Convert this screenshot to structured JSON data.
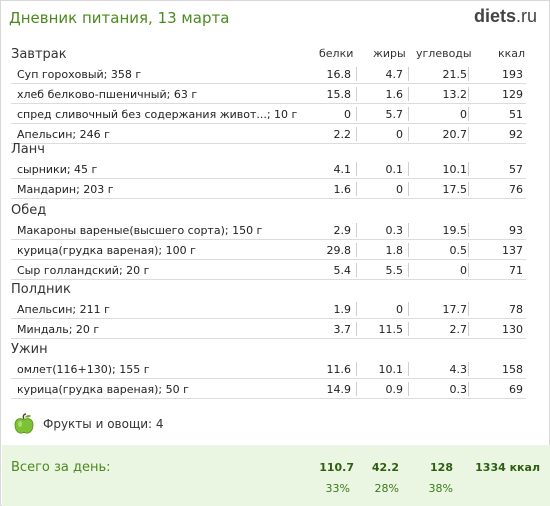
{
  "header": {
    "title": "Дневник питания, 13 марта",
    "logo_part1": "diets",
    "logo_part2": ".ru"
  },
  "columns": {
    "protein": "белки",
    "fat": "жиры",
    "carbs": "углеводы",
    "kcal": "ккал"
  },
  "meals": [
    {
      "title": "Завтрак",
      "items": [
        {
          "name": "Суп гороховый; 358 г",
          "protein": "16.8",
          "fat": "4.7",
          "carbs": "21.5",
          "kcal": "193"
        },
        {
          "name": "хлеб белково-пшеничный; 63 г",
          "protein": "15.8",
          "fat": "1.6",
          "carbs": "13.2",
          "kcal": "129"
        },
        {
          "name": "спред сливочный без содержания живот...; 10 г",
          "protein": "0",
          "fat": "5.7",
          "carbs": "0",
          "kcal": "51"
        },
        {
          "name": "Апельсин; 246 г",
          "protein": "2.2",
          "fat": "0",
          "carbs": "20.7",
          "kcal": "92"
        }
      ]
    },
    {
      "title": "Ланч",
      "items": [
        {
          "name": "сырники; 45 г",
          "protein": "4.1",
          "fat": "0.1",
          "carbs": "10.1",
          "kcal": "57"
        },
        {
          "name": "Мандарин; 203 г",
          "protein": "1.6",
          "fat": "0",
          "carbs": "17.5",
          "kcal": "76"
        }
      ]
    },
    {
      "title": "Обед",
      "items": [
        {
          "name": "Макароны вареные(высшего сорта); 150 г",
          "protein": "2.9",
          "fat": "0.3",
          "carbs": "19.5",
          "kcal": "93"
        },
        {
          "name": "курица(грудка вареная); 100 г",
          "protein": "29.8",
          "fat": "1.8",
          "carbs": "0.5",
          "kcal": "137"
        },
        {
          "name": "Сыр голландский; 20 г",
          "protein": "5.4",
          "fat": "5.5",
          "carbs": "0",
          "kcal": "71"
        }
      ]
    },
    {
      "title": "Полдник",
      "items": [
        {
          "name": "Апельсин; 211 г",
          "protein": "1.9",
          "fat": "0",
          "carbs": "17.7",
          "kcal": "78"
        },
        {
          "name": "Миндаль; 20 г",
          "protein": "3.7",
          "fat": "11.5",
          "carbs": "2.7",
          "kcal": "130"
        }
      ]
    },
    {
      "title": "Ужин",
      "items": [
        {
          "name": "омлет(116+130); 155 г",
          "protein": "11.6",
          "fat": "10.1",
          "carbs": "4.3",
          "kcal": "158"
        },
        {
          "name": "курица(грудка вареная); 50 г",
          "protein": "14.9",
          "fat": "0.9",
          "carbs": "0.3",
          "kcal": "69"
        }
      ]
    }
  ],
  "fruits": {
    "label": "Фрукты и овощи: 4",
    "icon": "green-apple-icon"
  },
  "total": {
    "label": "Всего за день:",
    "protein": "110.7",
    "fat": "42.2",
    "carbs": "128",
    "kcal": "1334 ккал",
    "protein_pct": "33%",
    "fat_pct": "28%",
    "carbs_pct": "38%"
  },
  "colors": {
    "accent": "#4a8a1e",
    "total_bg": "#eaf6e2"
  }
}
